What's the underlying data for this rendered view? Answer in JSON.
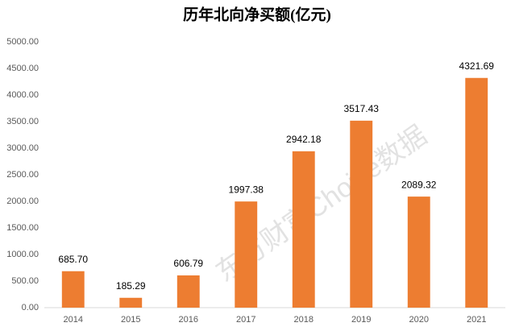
{
  "chart_data": {
    "type": "bar",
    "title": "历年北向净买额(亿元)",
    "categories": [
      "2014",
      "2015",
      "2016",
      "2017",
      "2018",
      "2019",
      "2020",
      "2021"
    ],
    "values": [
      685.7,
      185.29,
      606.79,
      1997.38,
      2942.18,
      3517.43,
      2089.32,
      4321.69
    ],
    "value_labels": [
      "685.70",
      "185.29",
      "606.79",
      "1997.38",
      "2942.18",
      "3517.43",
      "2089.32",
      "4321.69"
    ],
    "color": "#ed7d31",
    "ylim": [
      0,
      5000
    ],
    "yticks": [
      {
        "value": 0,
        "label": "0.00"
      },
      {
        "value": 500,
        "label": "500.00"
      },
      {
        "value": 1000,
        "label": "1000.00"
      },
      {
        "value": 1500,
        "label": "1500.00"
      },
      {
        "value": 2000,
        "label": "2000.00"
      },
      {
        "value": 2500,
        "label": "2500.00"
      },
      {
        "value": 3000,
        "label": "3000.00"
      },
      {
        "value": 3500,
        "label": "3500.00"
      },
      {
        "value": 4000,
        "label": "4000.00"
      },
      {
        "value": 4500,
        "label": "4500.00"
      },
      {
        "value": 5000,
        "label": "5000.00"
      }
    ],
    "grid": false,
    "watermark": "东方财富Choice数据"
  }
}
